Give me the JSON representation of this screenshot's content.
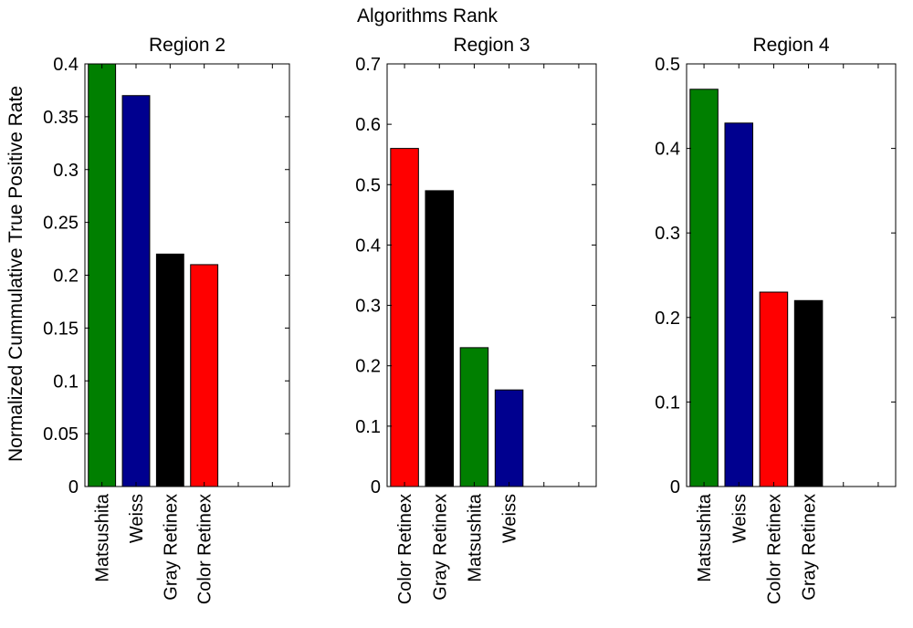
{
  "figure": {
    "supertitle": "Algorithms Rank",
    "ylabel": "Normalized Cummulative True Positive Rate"
  },
  "colors": {
    "Matsushita": "#007f00",
    "Weiss": "#00008f",
    "Gray Retinex": "#000000",
    "Color Retinex": "#ff0000"
  },
  "chart_data": [
    {
      "type": "bar",
      "title": "Region 2",
      "categories": [
        "Matsushita",
        "Weiss",
        "Gray Retinex",
        "Color Retinex"
      ],
      "values": [
        0.4,
        0.37,
        0.22,
        0.21
      ],
      "ylim": [
        0,
        0.4
      ],
      "yticks": [
        "0",
        "0.05",
        "0.1",
        "0.15",
        "0.2",
        "0.25",
        "0.3",
        "0.35",
        "0.4"
      ],
      "ytick_values": [
        0,
        0.05,
        0.1,
        0.15,
        0.2,
        0.25,
        0.3,
        0.35,
        0.4
      ],
      "xlim": [
        0.5,
        6.5
      ],
      "grid": false
    },
    {
      "type": "bar",
      "title": "Region 3",
      "categories": [
        "Color Retinex",
        "Gray Retinex",
        "Matsushita",
        "Weiss"
      ],
      "values": [
        0.56,
        0.49,
        0.23,
        0.16
      ],
      "ylim": [
        0,
        0.7
      ],
      "yticks": [
        "0",
        "0.1",
        "0.2",
        "0.3",
        "0.4",
        "0.5",
        "0.6",
        "0.7"
      ],
      "ytick_values": [
        0,
        0.1,
        0.2,
        0.3,
        0.4,
        0.5,
        0.6,
        0.7
      ],
      "xlim": [
        0.5,
        6.5
      ],
      "grid": false
    },
    {
      "type": "bar",
      "title": "Region 4",
      "categories": [
        "Matsushita",
        "Weiss",
        "Color Retinex",
        "Gray Retinex"
      ],
      "values": [
        0.47,
        0.43,
        0.23,
        0.22
      ],
      "ylim": [
        0,
        0.5
      ],
      "yticks": [
        "0",
        "0.1",
        "0.2",
        "0.3",
        "0.4",
        "0.5"
      ],
      "ytick_values": [
        0,
        0.1,
        0.2,
        0.3,
        0.4,
        0.5
      ],
      "xlim": [
        0.5,
        6.5
      ],
      "grid": false
    }
  ]
}
